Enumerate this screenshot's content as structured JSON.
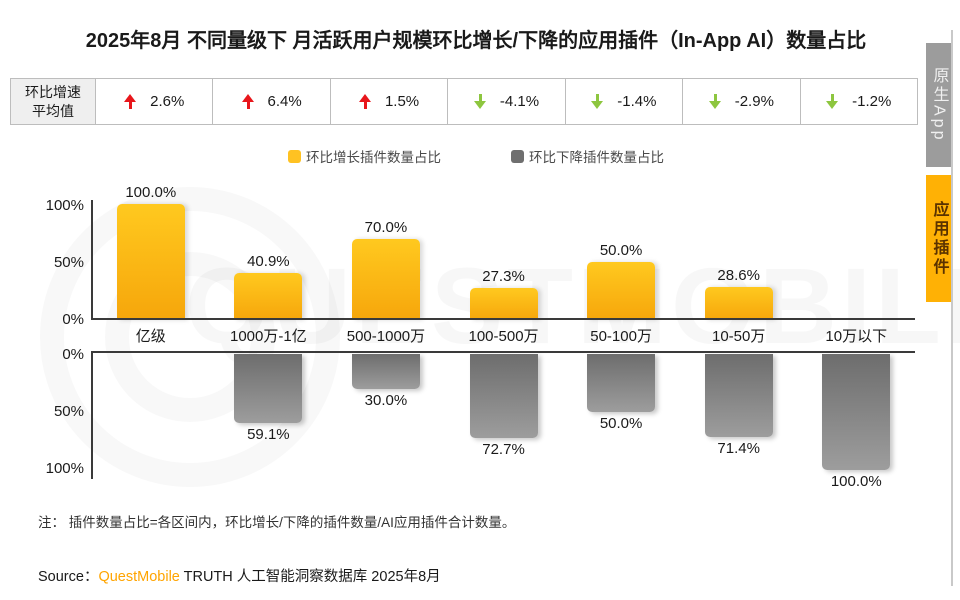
{
  "page": {
    "title": "2025年8月 不同量级下 月活跃用户规模环比增长/下降的应用插件（In-App AI）数量占比",
    "note": "注： 插件数量占比=各区间内，环比增长/下降的插件数量/AI应用插件合计数量。",
    "source_prefix": "Source：",
    "source_brand": "QuestMobile",
    "source_suffix": " TRUTH 人工智能洞察数据库 2025年8月",
    "watermark": "QUESTMOBILE"
  },
  "stats": {
    "header_line1": "环比增速",
    "header_line2": "平均值",
    "cells": [
      {
        "dir": "up",
        "value": "2.6%"
      },
      {
        "dir": "up",
        "value": "6.4%"
      },
      {
        "dir": "up",
        "value": "1.5%"
      },
      {
        "dir": "down",
        "value": "-4.1%"
      },
      {
        "dir": "down",
        "value": "-1.4%"
      },
      {
        "dir": "down",
        "value": "-2.9%"
      },
      {
        "dir": "down",
        "value": "-1.2%"
      }
    ]
  },
  "legend": [
    {
      "name": "growth",
      "label": "环比增长插件数量占比",
      "color": "#ffc222"
    },
    {
      "name": "decline",
      "label": "环比下降插件数量占比",
      "color": "#6f6f6f"
    }
  ],
  "side_tabs": [
    {
      "label": "原生App",
      "active": false
    },
    {
      "label": "应用插件",
      "active": true
    }
  ],
  "colors": {
    "growth_bar_top": "#ffc91f",
    "growth_bar_bottom": "#f6a60b",
    "decline_bar_top": "#6d6d6d",
    "decline_bar_bottom": "#9d9d9d",
    "up_arrow": "#e8161b",
    "down_arrow": "#8dc63f",
    "active_tab": "#ffb105",
    "inactive_tab": "#9c9c9c",
    "source_brand": "#ffa400"
  },
  "chart_data": {
    "type": "bar",
    "title": "2025年8月 不同量级下 月活跃用户规模环比增长/下降的应用插件（In-App AI）数量占比",
    "categories": [
      "亿级",
      "1000万-1亿",
      "500-1000万",
      "100-500万",
      "50-100万",
      "10-50万",
      "10万以下"
    ],
    "series": [
      {
        "name": "环比增长插件数量占比",
        "direction": "up",
        "values": [
          100.0,
          40.9,
          70.0,
          27.3,
          50.0,
          28.6,
          0
        ],
        "labels": [
          "100.0%",
          "40.9%",
          "70.0%",
          "27.3%",
          "50.0%",
          "28.6%",
          null
        ]
      },
      {
        "name": "环比下降插件数量占比",
        "direction": "down",
        "values": [
          0,
          59.1,
          30.0,
          72.7,
          50.0,
          71.4,
          100.0
        ],
        "labels": [
          null,
          "59.1%",
          "30.0%",
          "72.7%",
          "50.0%",
          "71.4%",
          "100.0%"
        ]
      }
    ],
    "avg_growth_row": {
      "label": "环比增速平均值",
      "values": [
        "2.6%",
        "6.4%",
        "1.5%",
        "-4.1%",
        "-1.4%",
        "-2.9%",
        "-1.2%"
      ]
    },
    "ylim": [
      0,
      100
    ],
    "y_ticks_up": [
      "100%",
      "50%",
      "0%"
    ],
    "y_ticks_down": [
      "0%",
      "50%",
      "100%"
    ],
    "grid": false,
    "legend_position": "top"
  }
}
